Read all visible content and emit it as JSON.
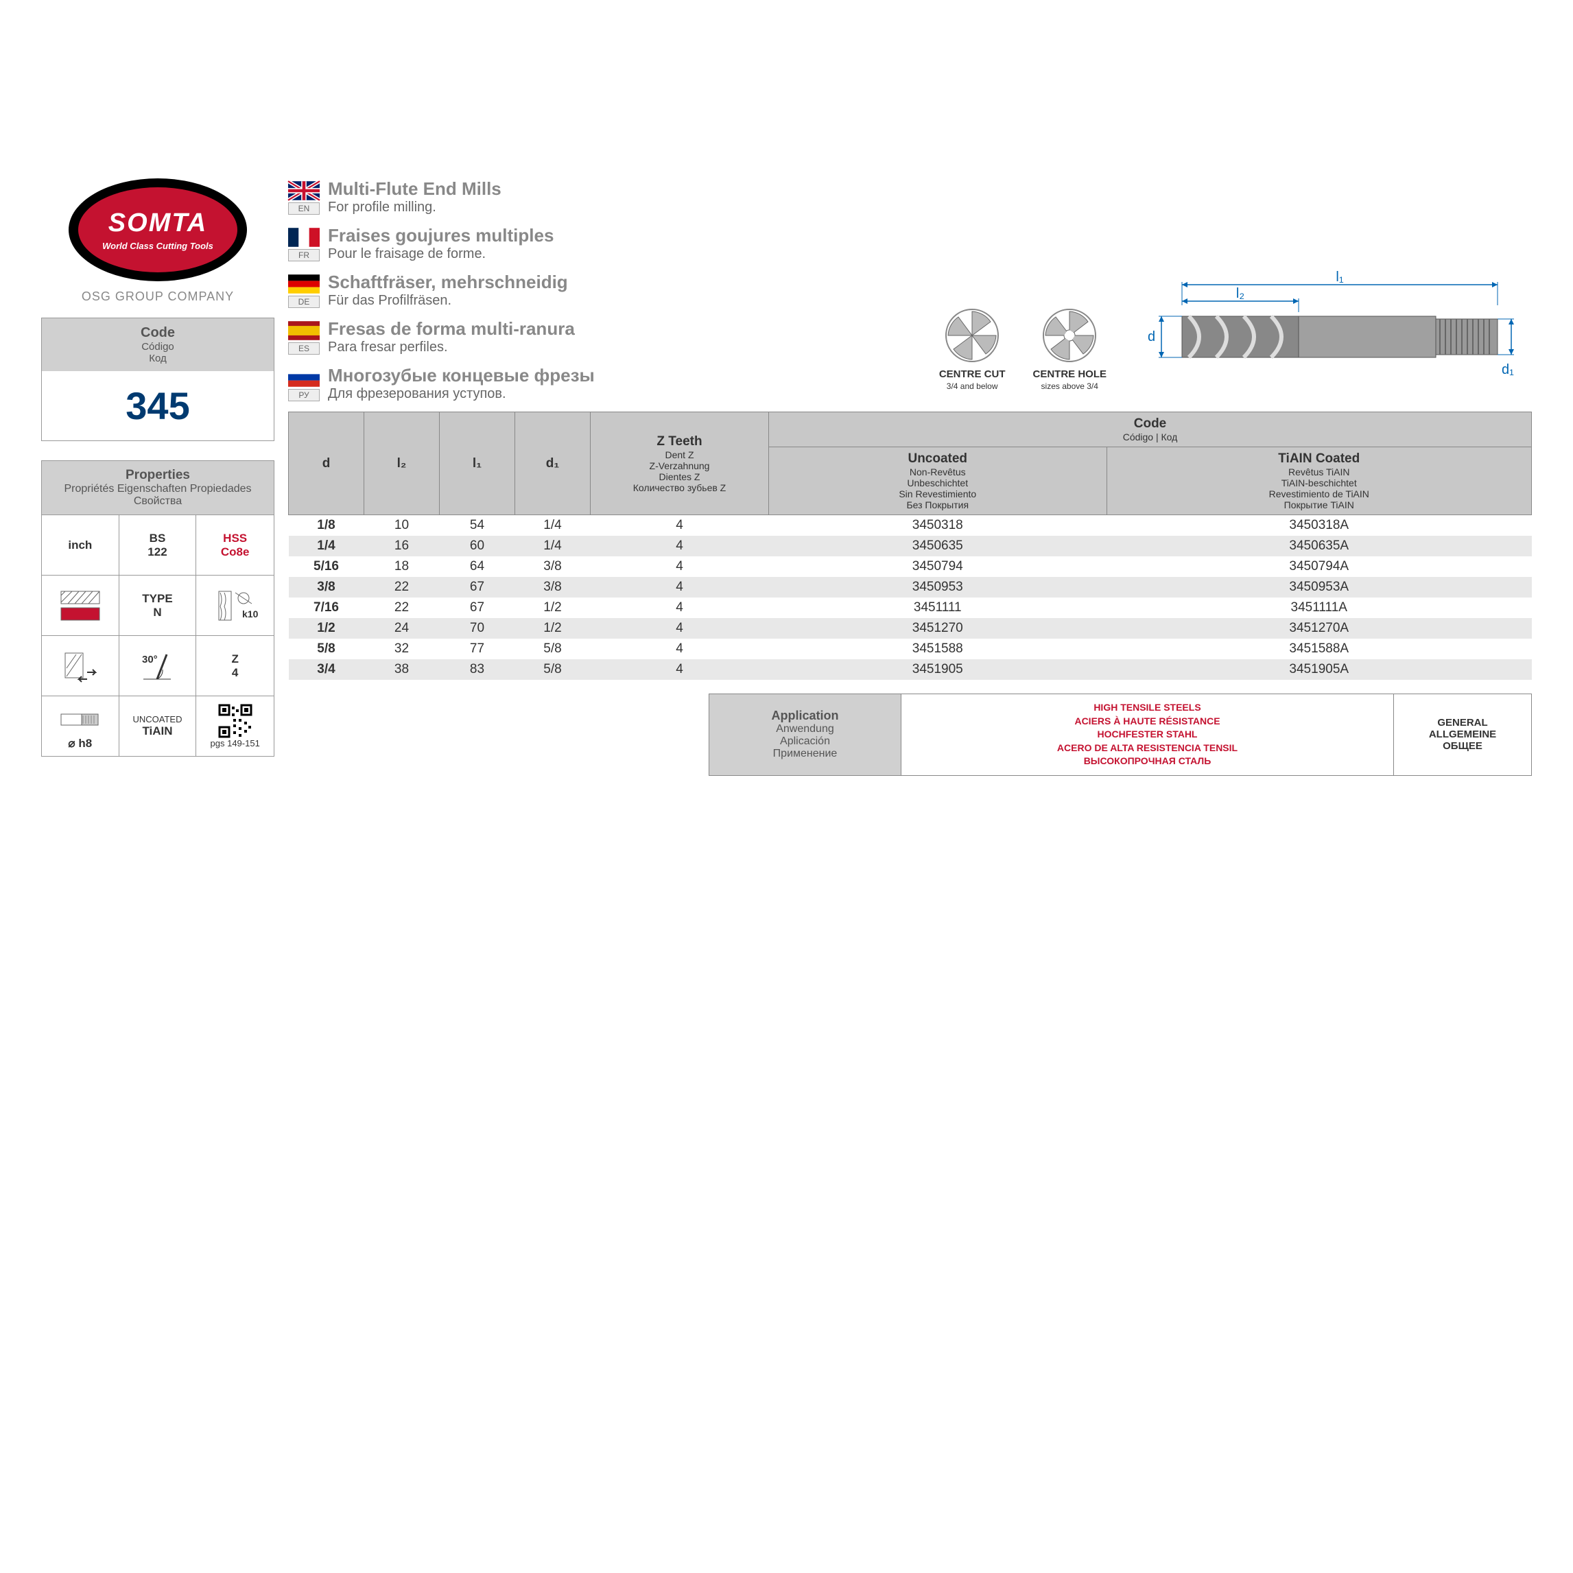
{
  "logo": {
    "brand": "SOMTA",
    "tagline": "World Class Cutting Tools",
    "group": "OSG GROUP COMPANY"
  },
  "code": {
    "label": "Code",
    "sub1": "Código",
    "sub2": "Код",
    "value": "345"
  },
  "properties": {
    "label": "Properties",
    "subs": [
      "Propriétés",
      "Eigenschaften",
      "Propiedades",
      "Свойства"
    ],
    "cells": {
      "c1": "inch",
      "c2a": "BS",
      "c2b": "122",
      "c3a": "HSS",
      "c3b": "Co8e",
      "c5a": "TYPE",
      "c5b": "N",
      "c6": "k10",
      "c8": "30°",
      "c9a": "Z",
      "c9b": "4",
      "c10": "⌀ h8",
      "c11a": "UNCOATED",
      "c11b": "TiAIN",
      "c12": "pgs 149-151"
    }
  },
  "languages": [
    {
      "code": "EN",
      "title": "Multi-Flute End Mills",
      "desc": "For profile milling."
    },
    {
      "code": "FR",
      "title": "Fraises goujures multiples",
      "desc": "Pour le fraisage de forme."
    },
    {
      "code": "DE",
      "title": "Schaftfräser, mehrschneidig",
      "desc": "Für das Profilfräsen."
    },
    {
      "code": "ES",
      "title": "Fresas de forma multi-ranura",
      "desc": "Para fresar perfiles."
    },
    {
      "code": "РУ",
      "title": "Многозубые концевые фрезы",
      "desc": "Для фрезерования уступов."
    }
  ],
  "diagrams": {
    "centre_cut": {
      "title": "CENTRE CUT",
      "sub": "3/4 and below"
    },
    "centre_hole": {
      "title": "CENTRE HOLE",
      "sub": "sizes above 3/4"
    },
    "dims": {
      "d": "d",
      "l2": "l₂",
      "l1": "l₁",
      "d1": "d₁"
    }
  },
  "table": {
    "headers": {
      "d": "d",
      "l2": "l₂",
      "l1": "l₁",
      "d1": "d₁",
      "zteeth": {
        "main": "Z Teeth",
        "subs": [
          "Dent Z",
          "Z-Verzahnung",
          "Dientes Z",
          "Количество зубьев Z"
        ]
      },
      "code": {
        "main": "Code",
        "sub": "Código | Код"
      },
      "uncoated": {
        "main": "Uncoated",
        "subs": [
          "Non-Revêtus",
          "Unbeschichtet",
          "Sin Revestimiento",
          "Без Покрытия"
        ]
      },
      "coated": {
        "main": "TiAIN Coated",
        "subs": [
          "Revêtus TiAIN",
          "TiAIN-beschichtet",
          "Revestimiento de TiAIN",
          "Покрытие TiAIN"
        ]
      }
    },
    "rows": [
      {
        "d": "1/8",
        "l2": "10",
        "l1": "54",
        "d1": "1/4",
        "z": "4",
        "unc": "3450318",
        "coat": "3450318A"
      },
      {
        "d": "1/4",
        "l2": "16",
        "l1": "60",
        "d1": "1/4",
        "z": "4",
        "unc": "3450635",
        "coat": "3450635A"
      },
      {
        "d": "5/16",
        "l2": "18",
        "l1": "64",
        "d1": "3/8",
        "z": "4",
        "unc": "3450794",
        "coat": "3450794A"
      },
      {
        "d": "3/8",
        "l2": "22",
        "l1": "67",
        "d1": "3/8",
        "z": "4",
        "unc": "3450953",
        "coat": "3450953A"
      },
      {
        "d": "7/16",
        "l2": "22",
        "l1": "67",
        "d1": "1/2",
        "z": "4",
        "unc": "3451111",
        "coat": "3451111A"
      },
      {
        "d": "1/2",
        "l2": "24",
        "l1": "70",
        "d1": "1/2",
        "z": "4",
        "unc": "3451270",
        "coat": "3451270A"
      },
      {
        "d": "5/8",
        "l2": "32",
        "l1": "77",
        "d1": "5/8",
        "z": "4",
        "unc": "3451588",
        "coat": "3451588A"
      },
      {
        "d": "3/4",
        "l2": "38",
        "l1": "83",
        "d1": "5/8",
        "z": "4",
        "unc": "3451905",
        "coat": "3451905A"
      }
    ]
  },
  "application": {
    "label": "Application",
    "subs": [
      "Anwendung",
      "Aplicación",
      "Применение"
    ],
    "red": [
      "HIGH TENSILE STEELS",
      "ACIERS À HAUTE RÉSISTANCE",
      "HOCHFESTER STAHL",
      "ACERO DE ALTA RESISTENCIA TENSIL",
      "ВЫСОКОПРОЧНАЯ СТАЛЬ"
    ],
    "general": [
      "GENERAL",
      "ALLGEMEINE",
      "ОБЩЕЕ"
    ]
  },
  "flag_colors": {
    "EN": [
      "#012169",
      "#c8102e",
      "#fff"
    ],
    "FR": [
      "#002654",
      "#fff",
      "#ce1126"
    ],
    "DE": [
      "#000",
      "#dd0000",
      "#ffce00"
    ],
    "ES": [
      "#aa151b",
      "#f1bf00"
    ],
    "RU": [
      "#fff",
      "#0039a6",
      "#d52b1e"
    ]
  }
}
